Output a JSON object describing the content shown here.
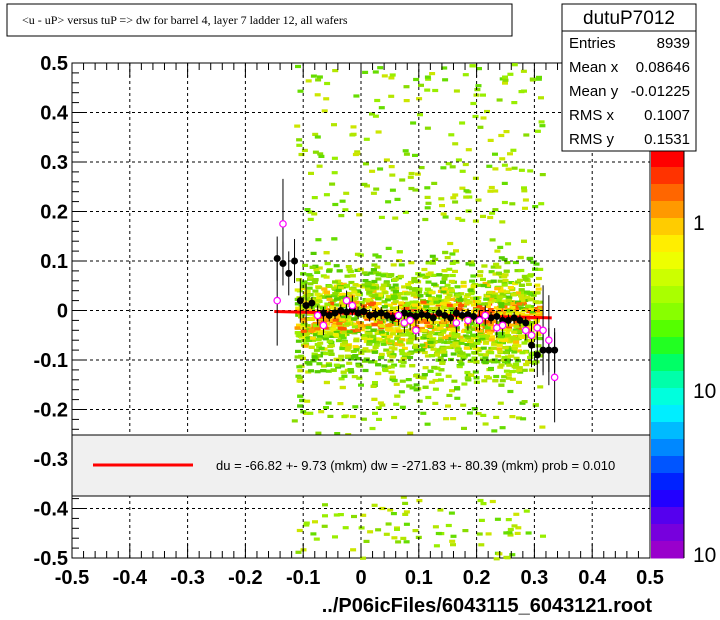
{
  "title": "<u - uP>       versus  tuP =>  dw for barrel 4, layer 7 ladder 12, all wafers",
  "stats": {
    "name": "dutuP7012",
    "rows": [
      {
        "label": "Entries",
        "value": "8939"
      },
      {
        "label": "Mean x",
        "value": "0.08646"
      },
      {
        "label": "Mean y",
        "value": "-0.01225"
      },
      {
        "label": "RMS x",
        "value": "0.1007"
      },
      {
        "label": "RMS y",
        "value": "0.1531"
      }
    ]
  },
  "legend": {
    "text": "du =  -66.82 +-  9.73 (mkm) dw = -271.83 +- 80.39 (mkm) prob = 0.010",
    "line_color": "#ff0000"
  },
  "colors": {
    "fit": "#ff0000",
    "profile_black": "#000000",
    "profile_open": "#ff00ff",
    "background": "#ffffff"
  },
  "chart_data": {
    "type": "heatmap",
    "xlabel": "../P06icFiles/6043115_6043121.root",
    "ylabel": "",
    "xlim": [
      -0.5,
      0.5
    ],
    "ylim": [
      -0.5,
      0.5
    ],
    "grid": true,
    "x_ticks": [
      "-0.5",
      "-0.4",
      "-0.3",
      "-0.2",
      "-0.1",
      "0",
      "0.1",
      "0.2",
      "0.3",
      "0.4",
      "0.5"
    ],
    "y_ticks": [
      "0.5",
      "0.4",
      "0.3",
      "0.2",
      "0.1",
      "0",
      "-0.1",
      "-0.2",
      "-0.3",
      "-0.4",
      "-0.5"
    ],
    "z_ticks": [
      "1",
      "10",
      "10"
    ],
    "z_scale": "log",
    "fit_line": {
      "x": [
        -0.15,
        0.33
      ],
      "y": [
        -0.002,
        -0.015
      ]
    },
    "profile_filled": {
      "x": [
        -0.145,
        -0.135,
        -0.125,
        -0.115,
        -0.105,
        -0.095,
        -0.085,
        -0.075,
        -0.065,
        -0.055,
        -0.045,
        -0.035,
        -0.025,
        -0.015,
        -0.005,
        0.005,
        0.015,
        0.025,
        0.035,
        0.045,
        0.055,
        0.065,
        0.075,
        0.085,
        0.095,
        0.105,
        0.115,
        0.125,
        0.135,
        0.145,
        0.155,
        0.165,
        0.175,
        0.185,
        0.195,
        0.205,
        0.215,
        0.225,
        0.235,
        0.245,
        0.255,
        0.265,
        0.275,
        0.285,
        0.295,
        0.305,
        0.315,
        0.325,
        0.335
      ],
      "y": [
        0.105,
        0.095,
        0.075,
        0.1,
        0.02,
        0.01,
        0.015,
        -0.01,
        -0.005,
        -0.01,
        -0.005,
        0.0,
        -0.003,
        0.002,
        -0.005,
        -0.002,
        -0.01,
        -0.008,
        -0.005,
        -0.01,
        -0.015,
        -0.012,
        -0.005,
        -0.01,
        -0.012,
        -0.008,
        -0.01,
        -0.015,
        -0.005,
        -0.01,
        -0.015,
        -0.005,
        -0.01,
        -0.008,
        -0.012,
        -0.018,
        -0.01,
        -0.015,
        -0.012,
        -0.02,
        -0.02,
        -0.015,
        -0.02,
        -0.025,
        -0.07,
        -0.09,
        -0.08,
        -0.08,
        -0.08
      ]
    },
    "profile_open": {
      "x": [
        -0.145,
        -0.135,
        -0.075,
        -0.065,
        -0.025,
        -0.015,
        0.065,
        0.075,
        0.085,
        0.095,
        0.165,
        0.185,
        0.205,
        0.215,
        0.235,
        0.245,
        0.285,
        0.295,
        0.305,
        0.315,
        0.325,
        0.335
      ],
      "y": [
        0.02,
        0.175,
        -0.01,
        -0.03,
        0.02,
        0.01,
        -0.01,
        -0.025,
        -0.02,
        -0.04,
        -0.025,
        -0.02,
        -0.02,
        -0.01,
        -0.035,
        -0.03,
        -0.04,
        -0.05,
        -0.035,
        -0.04,
        -0.06,
        -0.135
      ]
    }
  }
}
